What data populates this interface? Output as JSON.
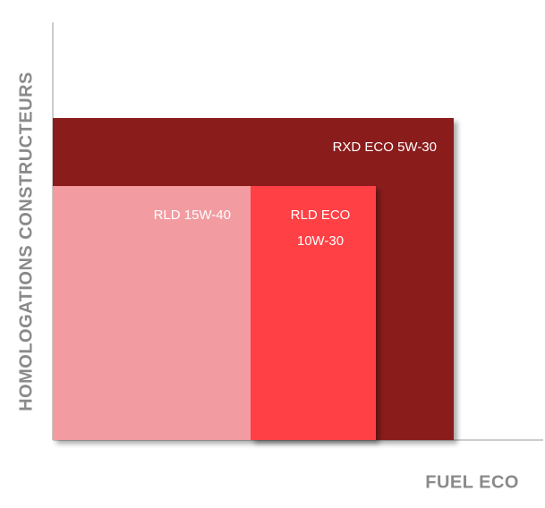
{
  "axes": {
    "y_label": "HOMOLOGATIONS CONSTRUCTEURS",
    "x_label": "FUEL ECO"
  },
  "boxes": [
    {
      "lines": [
        "RXD ECO 5W-30"
      ]
    },
    {
      "lines": [
        "RLD 15W-40"
      ]
    },
    {
      "lines": [
        "RLD ECO",
        "10W-30"
      ]
    }
  ]
}
